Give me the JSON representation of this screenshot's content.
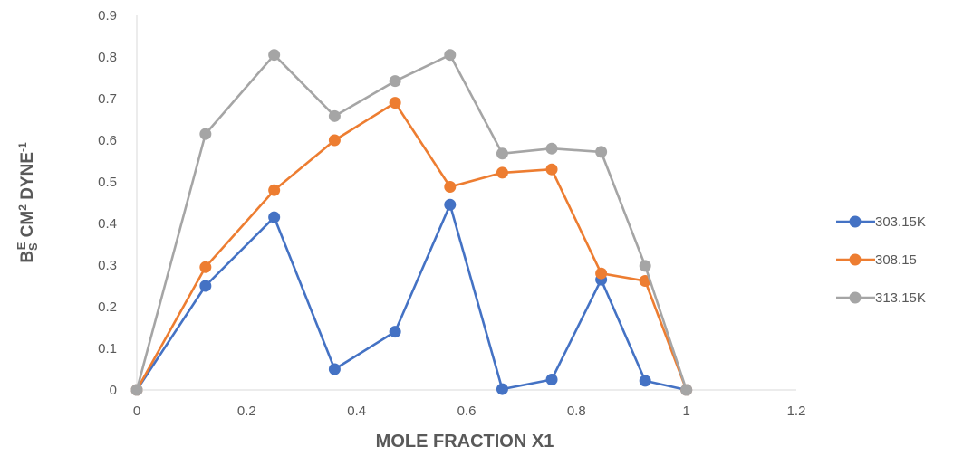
{
  "chart_data": {
    "type": "line",
    "title": "",
    "xlabel": "MOLE FRACTION X1",
    "ylabel": {
      "b": "B",
      "sub": "S",
      "sup": "E",
      "mid": " CM",
      "sq": "2",
      "unit": " DYNE",
      "exp": "-1"
    },
    "xlim": [
      0,
      1.2
    ],
    "ylim": [
      0,
      0.9
    ],
    "xticks": [
      0,
      0.2,
      0.4,
      0.6,
      0.8,
      1,
      1.2
    ],
    "xtick_labels": [
      "0",
      "0.2",
      "0.4",
      "0.6",
      "0.8",
      "1",
      "1.2"
    ],
    "yticks": [
      0,
      0.1,
      0.2,
      0.3,
      0.4,
      0.5,
      0.6,
      0.7,
      0.8,
      0.9
    ],
    "ytick_labels": [
      "0",
      "0.1",
      "0.2",
      "0.3",
      "0.4",
      "0.5",
      "0.6",
      "0.7",
      "0.8",
      "0.9"
    ],
    "grid": false,
    "legend_position": "right",
    "x": [
      0,
      0.125,
      0.25,
      0.36,
      0.47,
      0.57,
      0.665,
      0.755,
      0.845,
      0.925,
      1.0
    ],
    "series": [
      {
        "name": "303.15K",
        "color": "#4472C4",
        "values": [
          0,
          0.25,
          0.415,
          0.05,
          0.14,
          0.445,
          0.002,
          0.025,
          0.265,
          0.022,
          0
        ]
      },
      {
        "name": "308.15",
        "color": "#ED7D31",
        "values": [
          0,
          0.295,
          0.48,
          0.6,
          0.69,
          0.488,
          0.522,
          0.53,
          0.28,
          0.262,
          0
        ]
      },
      {
        "name": "313.15K",
        "color": "#A5A5A5",
        "values": [
          0,
          0.615,
          0.805,
          0.658,
          0.742,
          0.805,
          0.568,
          0.58,
          0.572,
          0.298,
          0
        ]
      }
    ]
  }
}
